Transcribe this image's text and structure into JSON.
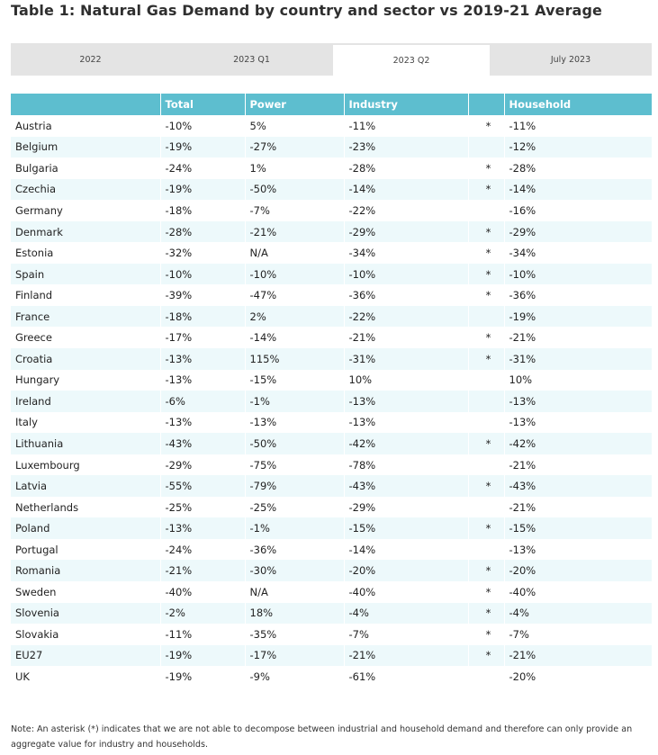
{
  "title": "Table 1: Natural Gas Demand by country and sector vs 2019-21 Average",
  "tabs": [
    "2022",
    "2023 Q1",
    "2023 Q2",
    "July 2023"
  ],
  "active_tab": "2023 Q2",
  "columns": [
    "",
    "Total",
    "Power",
    "Industry",
    "",
    "Household"
  ],
  "rows": [
    {
      "country": "Austria",
      "total": "-10%",
      "power": "5%",
      "industry": "-11%",
      "star": "*",
      "household": "-11%"
    },
    {
      "country": "Belgium",
      "total": "-19%",
      "power": "-27%",
      "industry": "-23%",
      "star": "",
      "household": "-12%"
    },
    {
      "country": "Bulgaria",
      "total": "-24%",
      "power": "1%",
      "industry": "-28%",
      "star": "*",
      "household": "-28%"
    },
    {
      "country": "Czechia",
      "total": "-19%",
      "power": "-50%",
      "industry": "-14%",
      "star": "*",
      "household": "-14%"
    },
    {
      "country": "Germany",
      "total": "-18%",
      "power": "-7%",
      "industry": "-22%",
      "star": "",
      "household": "-16%"
    },
    {
      "country": "Denmark",
      "total": "-28%",
      "power": "-21%",
      "industry": "-29%",
      "star": "*",
      "household": "-29%"
    },
    {
      "country": "Estonia",
      "total": "-32%",
      "power": "N/A",
      "industry": "-34%",
      "star": "*",
      "household": "-34%"
    },
    {
      "country": "Spain",
      "total": "-10%",
      "power": "-10%",
      "industry": "-10%",
      "star": "*",
      "household": "-10%"
    },
    {
      "country": "Finland",
      "total": "-39%",
      "power": "-47%",
      "industry": "-36%",
      "star": "*",
      "household": "-36%"
    },
    {
      "country": "France",
      "total": "-18%",
      "power": "2%",
      "industry": "-22%",
      "star": "",
      "household": "-19%"
    },
    {
      "country": "Greece",
      "total": "-17%",
      "power": "-14%",
      "industry": "-21%",
      "star": "*",
      "household": "-21%"
    },
    {
      "country": "Croatia",
      "total": "-13%",
      "power": "115%",
      "industry": "-31%",
      "star": "*",
      "household": "-31%"
    },
    {
      "country": "Hungary",
      "total": "-13%",
      "power": "-15%",
      "industry": "10%",
      "star": "",
      "household": "10%"
    },
    {
      "country": "Ireland",
      "total": "-6%",
      "power": "-1%",
      "industry": "-13%",
      "star": "",
      "household": "-13%"
    },
    {
      "country": "Italy",
      "total": "-13%",
      "power": "-13%",
      "industry": "-13%",
      "star": "",
      "household": "-13%"
    },
    {
      "country": "Lithuania",
      "total": "-43%",
      "power": "-50%",
      "industry": "-42%",
      "star": "*",
      "household": "-42%"
    },
    {
      "country": "Luxembourg",
      "total": "-29%",
      "power": "-75%",
      "industry": "-78%",
      "star": "",
      "household": "-21%"
    },
    {
      "country": "Latvia",
      "total": "-55%",
      "power": "-79%",
      "industry": "-43%",
      "star": "*",
      "household": "-43%"
    },
    {
      "country": "Netherlands",
      "total": "-25%",
      "power": "-25%",
      "industry": "-29%",
      "star": "",
      "household": "-21%"
    },
    {
      "country": "Poland",
      "total": "-13%",
      "power": "-1%",
      "industry": "-15%",
      "star": "*",
      "household": "-15%"
    },
    {
      "country": "Portugal",
      "total": "-24%",
      "power": "-36%",
      "industry": "-14%",
      "star": "",
      "household": "-13%"
    },
    {
      "country": "Romania",
      "total": "-21%",
      "power": "-30%",
      "industry": "-20%",
      "star": "*",
      "household": "-20%"
    },
    {
      "country": "Sweden",
      "total": "-40%",
      "power": "N/A",
      "industry": "-40%",
      "star": "*",
      "household": "-40%"
    },
    {
      "country": "Slovenia",
      "total": "-2%",
      "power": "18%",
      "industry": "-4%",
      "star": "*",
      "household": "-4%"
    },
    {
      "country": "Slovakia",
      "total": "-11%",
      "power": "-35%",
      "industry": "-7%",
      "star": "*",
      "household": "-7%"
    },
    {
      "country": "EU27",
      "total": "-19%",
      "power": "-17%",
      "industry": "-21%",
      "star": "*",
      "household": "-21%"
    },
    {
      "country": "UK",
      "total": "-19%",
      "power": "-9%",
      "industry": "-61%",
      "star": "",
      "household": "-20%"
    }
  ],
  "note": "Note: An asterisk (*) indicates that we are not able to decompose between industrial and household demand and therefore can only provide an aggregate value for industry and households."
}
